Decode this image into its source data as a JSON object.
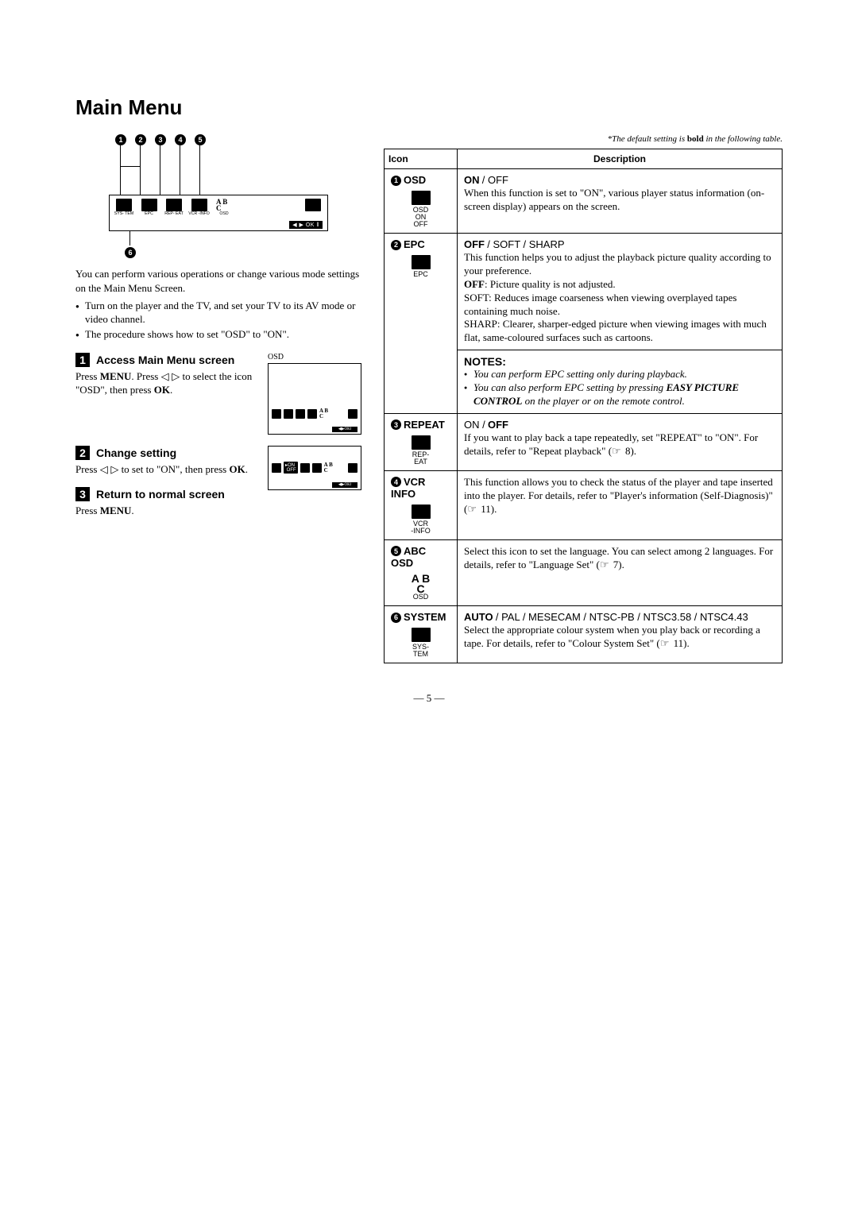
{
  "page": {
    "title": "Main Menu",
    "disclaimer_prefix": "*The default setting is ",
    "disclaimer_bold": "bold",
    "disclaimer_suffix": " in the following table.",
    "page_number": "— 5 —"
  },
  "diagram": {
    "callouts": [
      "1",
      "2",
      "3",
      "4",
      "5"
    ],
    "bottom_callout": "6",
    "icons": [
      {
        "label": "SYS-\nTEM"
      },
      {
        "label": "EPC"
      },
      {
        "label": "REP-\nEAT"
      },
      {
        "label": "VCR\n-INFO"
      },
      {
        "label": "OSD",
        "abc": true
      }
    ],
    "right_label": "",
    "nav": "◀ ▶ OK ǁ"
  },
  "left": {
    "intro": "You can perform various operations or change various mode settings on the Main Menu Screen.",
    "bullets": [
      "Turn on the player and the TV, and set your TV to its AV mode or video channel.",
      "The procedure shows how to set \"OSD\" to \"ON\"."
    ],
    "osd_label": "OSD",
    "steps": [
      {
        "num": "1",
        "title": "Access Main Menu screen",
        "body_html": "Press <b>MENU</b>. Press <span class='tri'>◁ ▷</span> to select the icon \"OSD\", then press <b>OK</b>."
      },
      {
        "num": "2",
        "title": "Change setting",
        "body_html": "Press <span class='tri'>◁ ▷</span> to set to \"ON\", then press <b>OK</b>."
      },
      {
        "num": "3",
        "title": "Return to normal screen",
        "body_html": "Press <b>MENU</b>."
      }
    ]
  },
  "table": {
    "head_icon": "Icon",
    "head_desc": "Description",
    "rows": [
      {
        "num": "1",
        "name": "OSD",
        "graphic": {
          "type": "block",
          "sub": "OSD\nON\nOFF"
        },
        "options_html": "<span class='opt-bold'>ON</span> <span class='opt-norm'>/ OFF</span>",
        "body_html": "When this function is set to \"ON\", various player status information (on-screen display) appears on the screen."
      },
      {
        "num": "2",
        "name": "EPC",
        "graphic": {
          "type": "block",
          "sub": "EPC"
        },
        "options_html": "<span class='opt-bold'>OFF</span> <span class='opt-norm'>/ SOFT / SHARP</span>",
        "body_html": "This function helps you to adjust the playback picture quality according to your preference.<br><b>OFF</b>: Picture quality is not adjusted.<br>SOFT: Reduces image coarseness when viewing overplayed tapes containing much noise.<br>SHARP: Clearer, sharper-edged picture when viewing images with much flat, same-coloured surfaces such as cartoons.",
        "notes": [
          "You can perform EPC setting only during playback.",
          "You can also perform EPC setting by pressing <b>EASY PICTURE CONTROL</b> on the player or on the remote control."
        ]
      },
      {
        "num": "3",
        "name": "REPEAT",
        "graphic": {
          "type": "block",
          "sub": "REP-\nEAT"
        },
        "options_html": "<span class='opt-norm'>ON /</span> <span class='opt-bold'>OFF</span>",
        "body_html": "If you want to play back a tape repeatedly, set \"REPEAT\" to \"ON\". For details, refer to \"Repeat playback\" (<span class='pg-ref'></span> 8)."
      },
      {
        "num": "4",
        "name": "VCR INFO",
        "graphic": {
          "type": "block",
          "sub": "VCR\n-INFO"
        },
        "options_html": "",
        "body_html": "This function allows you to check the status of the player and tape inserted into the player. For details, refer to \"Player's information (Self-Diagnosis)\" (<span class='pg-ref'></span> 11)."
      },
      {
        "num": "5",
        "name": "ABC OSD",
        "graphic": {
          "type": "abc",
          "sub": "OSD"
        },
        "options_html": "",
        "body_html": "Select this icon to set the language. You can select among 2 languages. For details, refer to \"Language Set\" (<span class='pg-ref'></span> 7)."
      },
      {
        "num": "6",
        "name": "SYSTEM",
        "graphic": {
          "type": "block",
          "sub": "SYS-\nTEM"
        },
        "options_html": "<span class='opt-bold'>AUTO</span> <span class='opt-norm'>/ PAL / MESECAM / NTSC-PB / NTSC3.58  / NTSC4.43</span>",
        "body_html": "Select the appropriate colour system when you play back or recording a tape. For details, refer to \"Colour System Set\" (<span class='pg-ref'></span> 11)."
      }
    ]
  }
}
